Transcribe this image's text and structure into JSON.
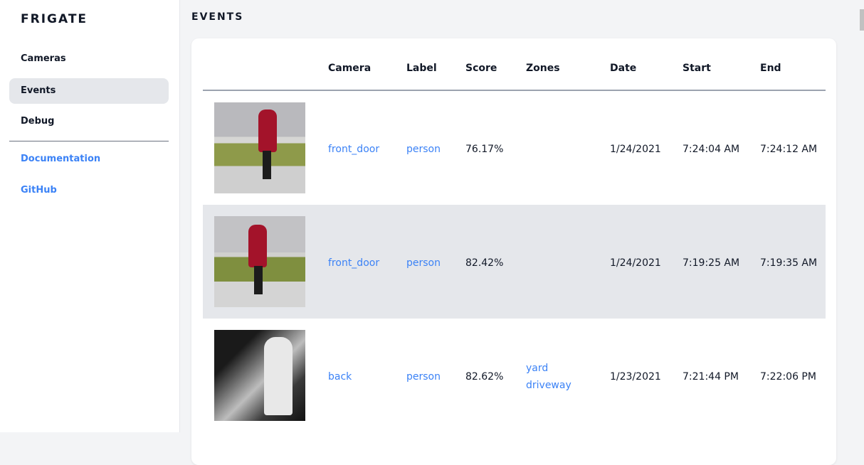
{
  "sidebar": {
    "brand": "FRIGATE",
    "items": [
      {
        "label": "Cameras"
      },
      {
        "label": "Events",
        "active": true
      },
      {
        "label": "Debug"
      }
    ],
    "links": [
      {
        "label": "Documentation"
      },
      {
        "label": "GitHub"
      }
    ]
  },
  "page": {
    "title": "EVENTS"
  },
  "table": {
    "headers": [
      "Camera",
      "Label",
      "Score",
      "Zones",
      "Date",
      "Start",
      "End"
    ],
    "rows": [
      {
        "camera": "front_door",
        "label": "person",
        "score": "76.17%",
        "zones": [
          "",
          ""
        ],
        "date": "1/24/2021",
        "start": "7:24:04 AM",
        "end": "7:24:12 AM"
      },
      {
        "camera": "front_door",
        "label": "person",
        "score": "82.42%",
        "zones": [
          "",
          ""
        ],
        "date": "1/24/2021",
        "start": "7:19:25 AM",
        "end": "7:19:35 AM"
      },
      {
        "camera": "back",
        "label": "person",
        "score": "82.62%",
        "zones": [
          "yard",
          "driveway"
        ],
        "date": "1/23/2021",
        "start": "7:21:44 PM",
        "end": "7:22:06 PM"
      }
    ]
  },
  "colors": {
    "accent": "#3b82f6",
    "active_bg": "#e5e7eb"
  }
}
